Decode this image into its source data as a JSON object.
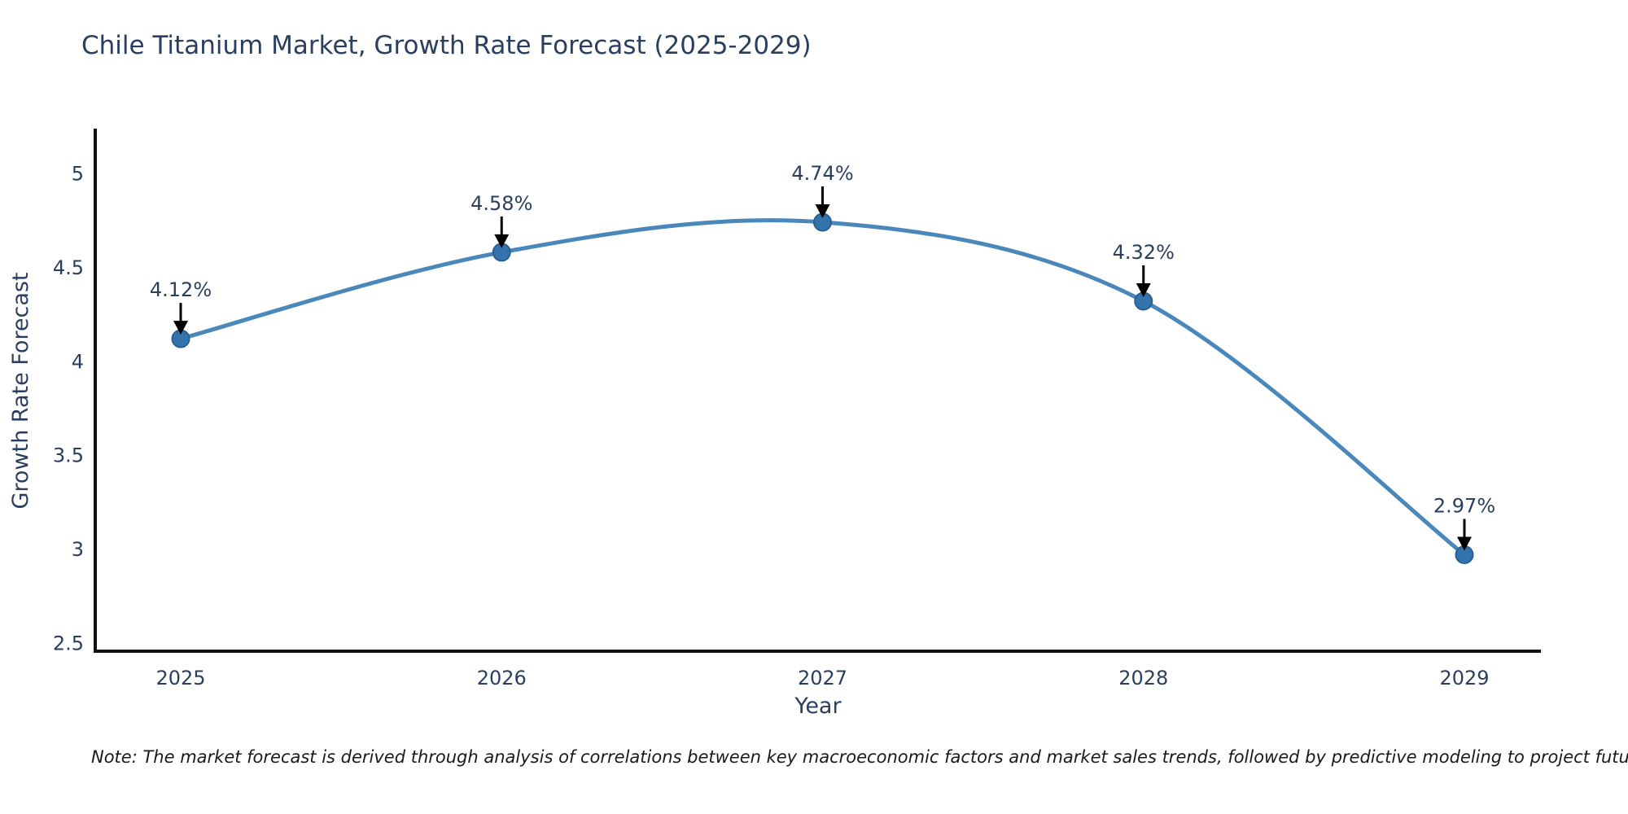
{
  "title": "Chile Titanium Market, Growth Rate Forecast (2025-2029)",
  "note": "Note: The market forecast is derived through analysis of correlations between key macroeconomic factors and market sales trends, followed by predictive modeling to project future sales",
  "chart_data": {
    "type": "line",
    "title": "Chile Titanium Market, Growth Rate Forecast (2025-2029)",
    "xlabel": "Year",
    "ylabel": "Growth Rate Forecast",
    "x": [
      2025,
      2026,
      2027,
      2028,
      2029
    ],
    "values": [
      4.12,
      4.58,
      4.74,
      4.32,
      2.97
    ],
    "point_labels": [
      "4.12%",
      "4.58%",
      "4.74%",
      "4.32%",
      "2.97%"
    ],
    "x_tick_labels": [
      "2025",
      "2026",
      "2027",
      "2028",
      "2029"
    ],
    "y_tick_labels": [
      "5",
      "4.5",
      "4",
      "3.5",
      "3",
      "2.5"
    ],
    "y_tick_values": [
      5,
      4.5,
      4,
      3.5,
      3,
      2.5
    ],
    "xlim": [
      2025,
      2029
    ],
    "ylim": [
      2.5,
      5.27
    ],
    "grid": false,
    "legend": "none",
    "line_shape": "spline",
    "colors": {
      "line": "#4a87bb",
      "marker_fill": "#3474ad",
      "marker_border": "#2a5f91",
      "annotation_arrow": "#000000",
      "axis_spine": "#111111",
      "font": "#2a3f5f",
      "background": "#ffffff"
    }
  }
}
